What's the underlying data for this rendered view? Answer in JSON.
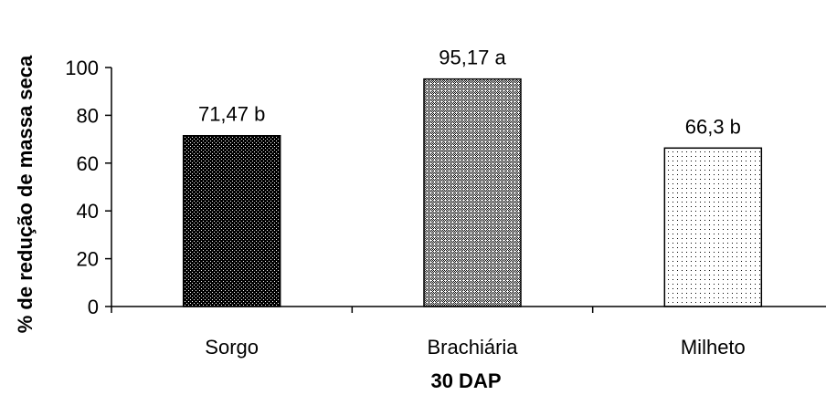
{
  "chart_data": {
    "type": "bar",
    "categories": [
      "Sorgo",
      "Brachiária",
      "Milheto"
    ],
    "values": [
      71.47,
      95.17,
      66.3
    ],
    "data_labels": [
      "71,47 b",
      "95,17 a",
      "66,3 b"
    ],
    "title": "",
    "xlabel": "30 DAP",
    "ylabel": "% de redução de massa seca",
    "ylim": [
      0,
      100
    ],
    "yticks": [
      0,
      20,
      40,
      60,
      80,
      100
    ],
    "ytick_labels": [
      "0",
      "20",
      "40",
      "60",
      "80",
      "100"
    ],
    "grid": false,
    "legend": "none",
    "bar_fills": [
      "dense-dots",
      "crosshatch",
      "sparse-dots"
    ]
  }
}
